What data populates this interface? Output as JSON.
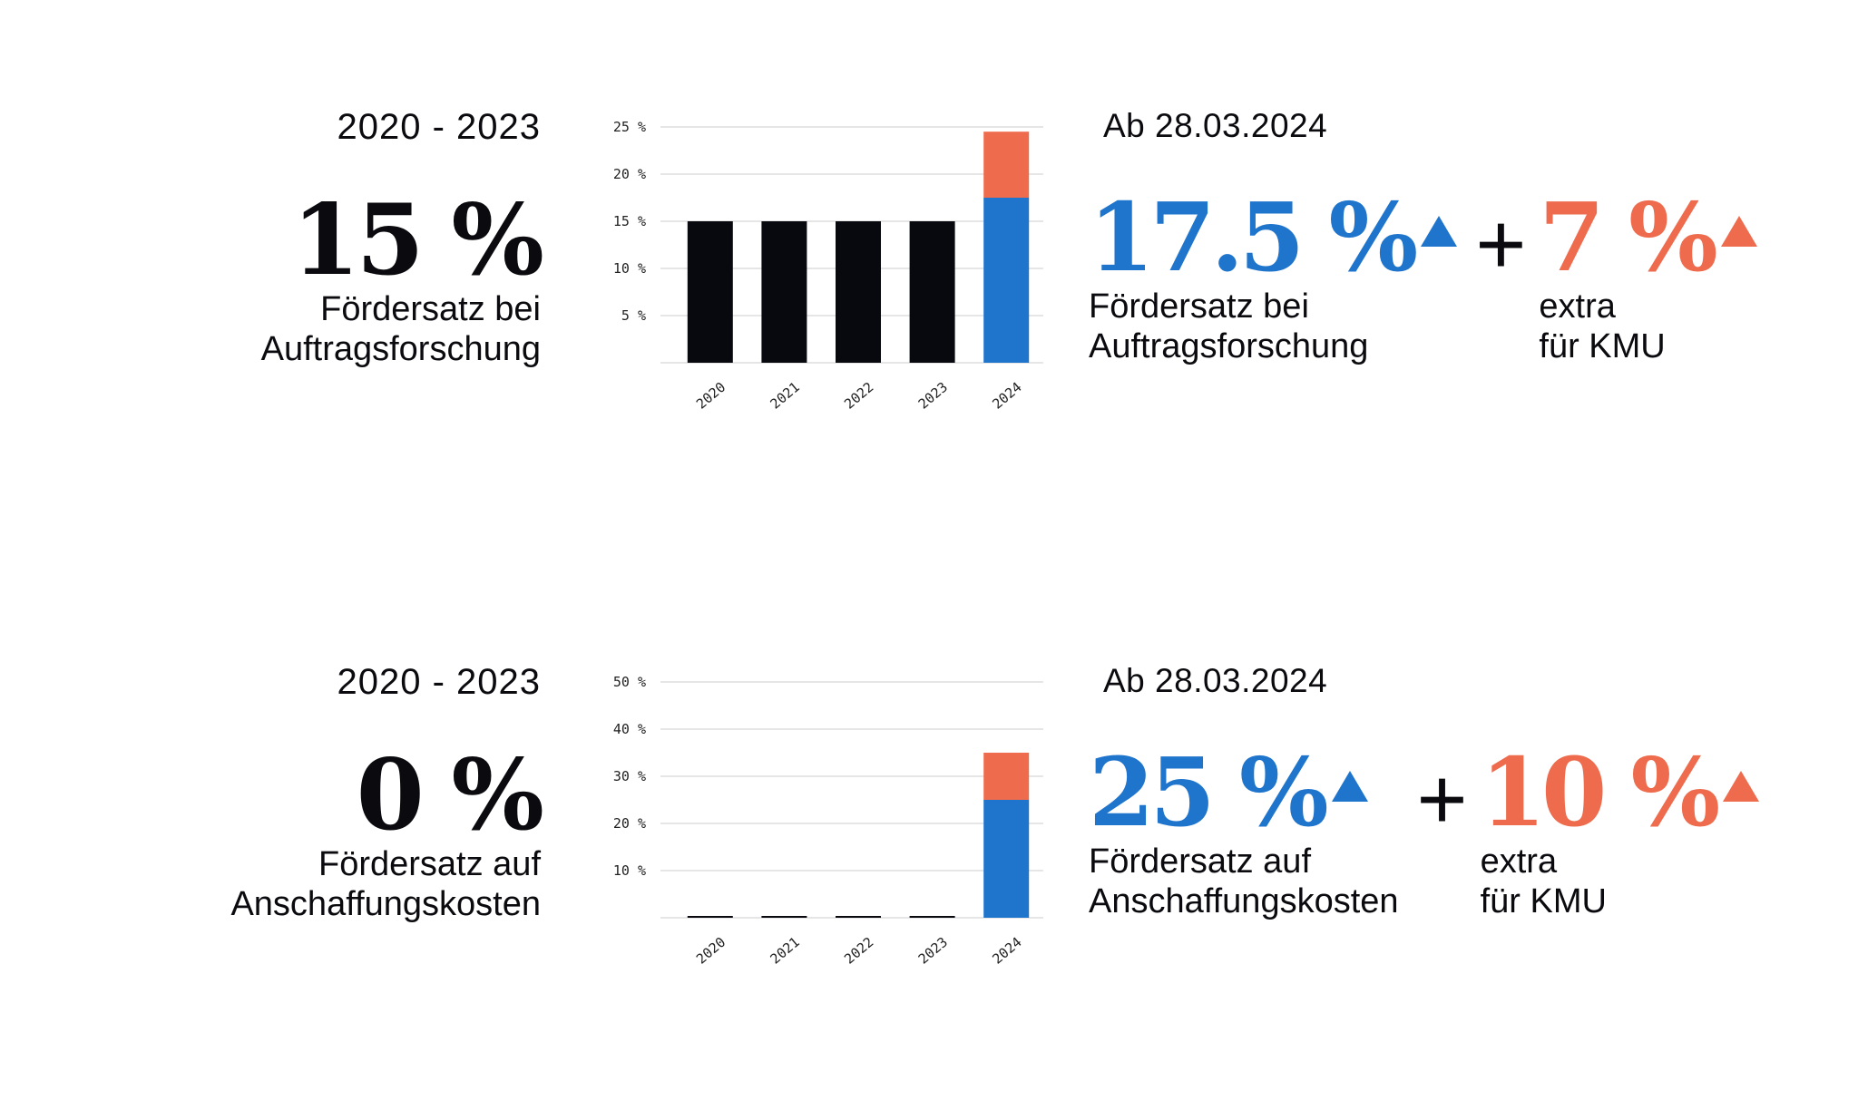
{
  "colors": {
    "black_bar": "#07090e",
    "blue": "#1f74cc",
    "orange": "#ee6c4d",
    "grid": "#e6e6e6"
  },
  "sections": [
    {
      "before": {
        "period": "2020 - 2023",
        "rate": "15 %",
        "desc_line1": "Fördersatz bei",
        "desc_line2": "Auftragsforschung"
      },
      "after": {
        "since": "Ab 28.03.2024",
        "rate": "17.5 %",
        "desc_line1": "Fördersatz bei",
        "desc_line2": "Auftragsforschung",
        "plus": "+",
        "extra_rate": "7 %",
        "extra_line1": "extra",
        "extra_line2": "für KMU"
      }
    },
    {
      "before": {
        "period": "2020 - 2023",
        "rate": "0 %",
        "desc_line1": "Fördersatz auf",
        "desc_line2": "Anschaffungskosten"
      },
      "after": {
        "since": "Ab 28.03.2024",
        "rate": "25 %",
        "desc_line1": "Fördersatz auf",
        "desc_line2": "Anschaffungskosten",
        "plus": "+",
        "extra_rate": "10 %",
        "extra_line1": "extra",
        "extra_line2": "für KMU"
      }
    }
  ],
  "chart_data": [
    {
      "type": "bar",
      "stacked": true,
      "categories": [
        "2020",
        "2021",
        "2022",
        "2023",
        "2024"
      ],
      "series": [
        {
          "values": [
            15,
            15,
            15,
            15,
            0
          ],
          "color": "#07090e"
        },
        {
          "values": [
            0,
            0,
            0,
            0,
            17.5
          ],
          "color": "#1f74cc"
        },
        {
          "values": [
            0,
            0,
            0,
            0,
            7
          ],
          "color": "#ee6c4d"
        }
      ],
      "yticks": [
        5,
        10,
        15,
        20,
        25
      ],
      "ytick_labels": [
        "5 %",
        "10 %",
        "15 %",
        "20 %",
        "25 %"
      ],
      "ylim": [
        0,
        25
      ],
      "grid": true
    },
    {
      "type": "bar",
      "stacked": true,
      "categories": [
        "2020",
        "2021",
        "2022",
        "2023",
        "2024"
      ],
      "series": [
        {
          "values": [
            0,
            0,
            0,
            0,
            0
          ],
          "color": "#07090e"
        },
        {
          "values": [
            0,
            0,
            0,
            0,
            25
          ],
          "color": "#1f74cc"
        },
        {
          "values": [
            0,
            0,
            0,
            0,
            10
          ],
          "color": "#ee6c4d"
        }
      ],
      "yticks": [
        10,
        20,
        30,
        40,
        50
      ],
      "ytick_labels": [
        "10 %",
        "20 %",
        "30 %",
        "40 %",
        "50 %"
      ],
      "ylim": [
        0,
        50
      ],
      "grid": true
    }
  ]
}
